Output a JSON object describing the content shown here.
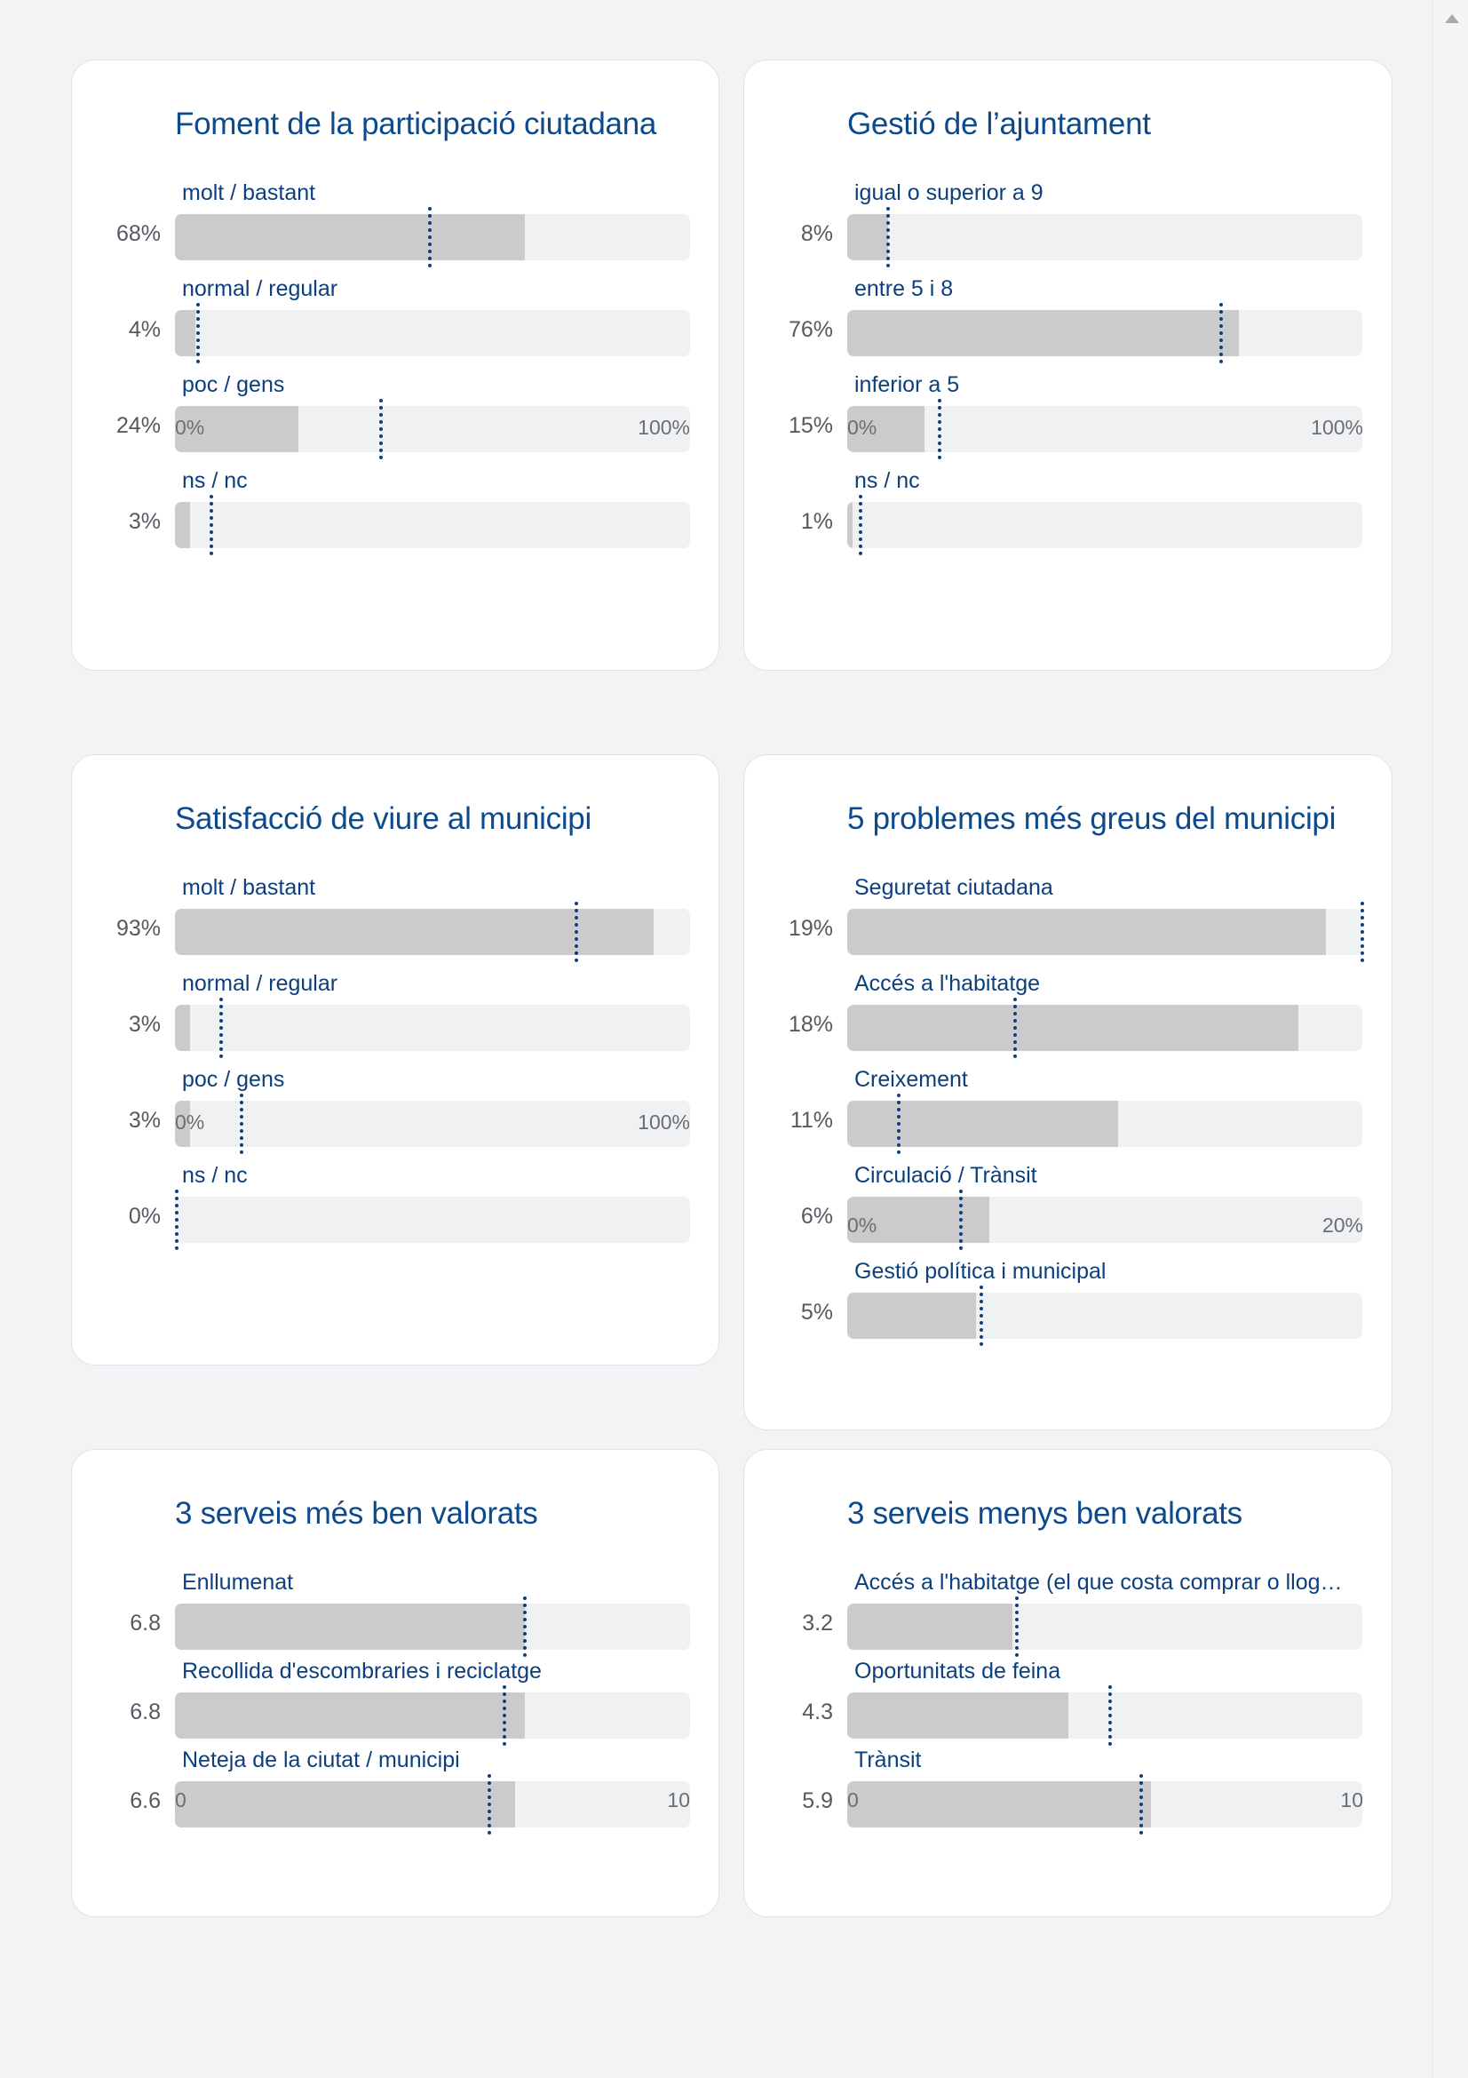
{
  "colors": {
    "title": "#0d4a8c",
    "bar": "#cbcbcb",
    "track": "#f0f1f3",
    "reference": "#0d3f7c"
  },
  "chart_data": [
    {
      "type": "bar",
      "title": "Foment de la participació ciutadana",
      "categories": [
        "molt / bastant",
        "normal / regular",
        "poc / gens",
        "ns / nc"
      ],
      "values": [
        68,
        4,
        24,
        3
      ],
      "value_labels": [
        "68%",
        "4%",
        "24%",
        "3%"
      ],
      "reference": [
        49.5,
        4.5,
        40,
        7
      ],
      "xlim": [
        0,
        100
      ],
      "axis_labels": [
        "0%",
        "100%"
      ]
    },
    {
      "type": "bar",
      "title": "Gestió de l’ajuntament",
      "categories": [
        "igual o superior a 9",
        "entre 5 i 8",
        "inferior a 5",
        "ns / nc"
      ],
      "values": [
        8,
        76,
        15,
        1
      ],
      "value_labels": [
        "8%",
        "76%",
        "15%",
        "1%"
      ],
      "reference": [
        8,
        72.5,
        18,
        2.5
      ],
      "xlim": [
        0,
        100
      ],
      "axis_labels": [
        "0%",
        "100%"
      ]
    },
    {
      "type": "bar",
      "title": "Satisfacció de viure al municipi",
      "categories": [
        "molt / bastant",
        "normal / regular",
        "poc / gens",
        "ns / nc"
      ],
      "values": [
        93,
        3,
        3,
        0
      ],
      "value_labels": [
        "93%",
        "3%",
        "3%",
        "0%"
      ],
      "reference": [
        78,
        9,
        13,
        0.4
      ],
      "xlim": [
        0,
        100
      ],
      "axis_labels": [
        "0%",
        "100%"
      ]
    },
    {
      "type": "bar",
      "title": "5 problemes més greus del municipi",
      "categories": [
        "Seguretat ciutadana",
        "Accés a l'habitatge",
        "Creixement",
        "Circulació / Trànsit",
        "Gestió política i municipal"
      ],
      "values": [
        18.6,
        17.5,
        10.5,
        5.5,
        5
      ],
      "value_labels": [
        "19%",
        "18%",
        "11%",
        "6%",
        "5%"
      ],
      "reference": [
        20,
        6.5,
        2,
        4.4,
        5.2
      ],
      "xlim": [
        0,
        20
      ],
      "axis_labels": [
        "0%",
        "20%"
      ]
    },
    {
      "type": "bar",
      "title": "3 serveis més ben valorats",
      "categories": [
        "Enllumenat",
        "Recollida d'escombraries i reciclatge",
        "Neteja de la ciutat / municipi"
      ],
      "values": [
        6.8,
        6.8,
        6.6
      ],
      "value_labels": [
        "6.8",
        "6.8",
        "6.6"
      ],
      "reference": [
        6.8,
        6.4,
        6.1
      ],
      "xlim": [
        0,
        10
      ],
      "axis_labels": [
        "0",
        "10"
      ]
    },
    {
      "type": "bar",
      "title": "3 serveis menys ben valorats",
      "categories": [
        "Accés a l'habitatge (el que costa comprar o llogar un habitatge)",
        "Oportunitats de feina",
        "Trànsit"
      ],
      "values": [
        3.2,
        4.3,
        5.9
      ],
      "value_labels": [
        "3.2",
        "4.3",
        "5.9"
      ],
      "reference": [
        3.3,
        5.1,
        5.7
      ],
      "xlim": [
        0,
        10
      ],
      "axis_labels": [
        "0",
        "10"
      ]
    }
  ]
}
